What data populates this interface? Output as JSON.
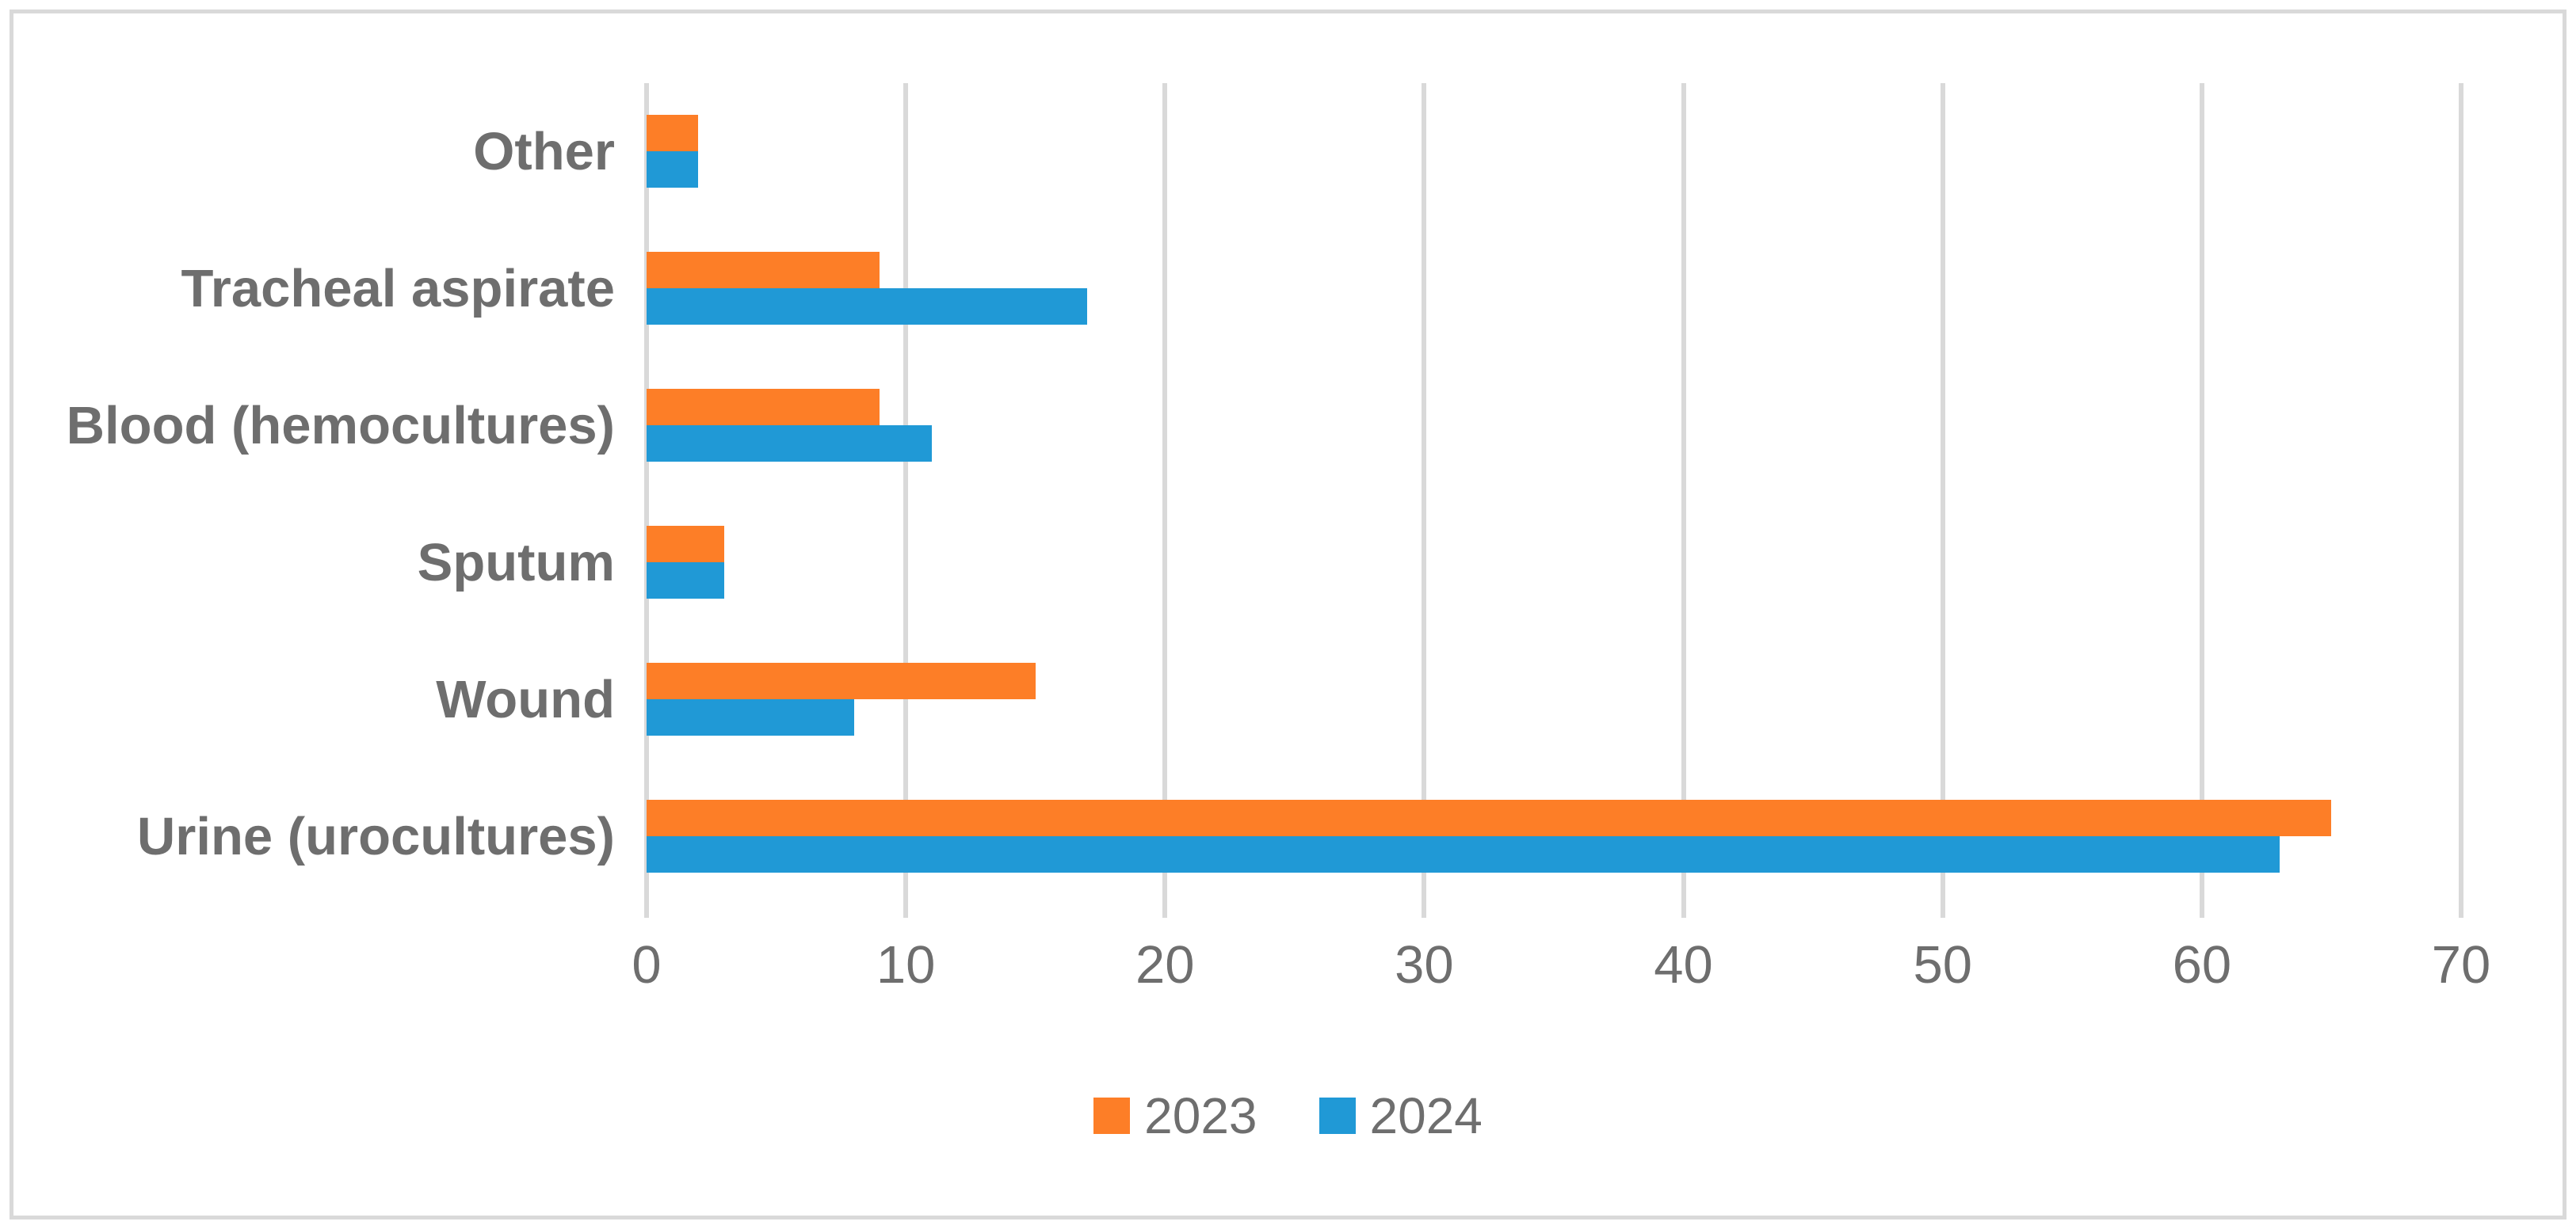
{
  "chart_data": {
    "type": "bar",
    "orientation": "horizontal",
    "title": "",
    "categories": [
      "Other",
      "Tracheal aspirate",
      "Blood (hemocultures)",
      "Sputum",
      "Wound",
      "Urine (urocultures)"
    ],
    "series": [
      {
        "name": "2023",
        "color": "#FD7E27",
        "values": [
          2,
          9,
          9,
          3,
          15,
          65
        ]
      },
      {
        "name": "2024",
        "color": "#2099D6",
        "values": [
          2,
          17,
          11,
          3,
          8,
          63
        ]
      }
    ],
    "xlim": [
      0,
      70
    ],
    "xticks": [
      0,
      10,
      20,
      30,
      40,
      50,
      60,
      70
    ],
    "grid": "vertical",
    "legend_position": "bottom",
    "grid_color": "#D9D9D9",
    "text_color": "#6E6E6E",
    "frame_color": "#D9D9D9"
  }
}
